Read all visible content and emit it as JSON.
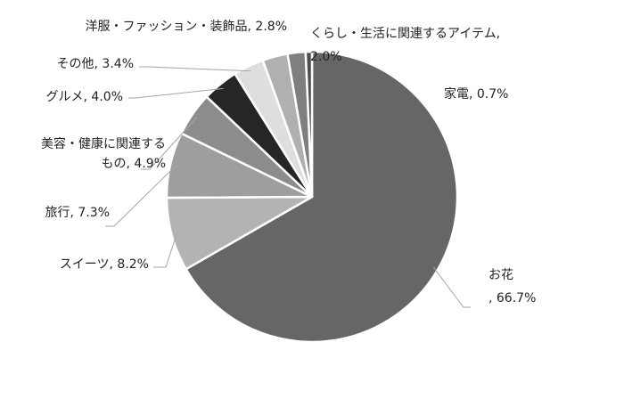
{
  "chart_data": {
    "type": "pie",
    "title": "",
    "slices": [
      {
        "label": "お花",
        "value": 66.7,
        "color": "#666666",
        "label_lines": [
          "お花",
          ", 66.7%"
        ]
      },
      {
        "label": "スイーツ",
        "value": 8.2,
        "color": "#b3b3b3",
        "label_lines": [
          "スイーツ, 8.2%"
        ]
      },
      {
        "label": "旅行",
        "value": 7.3,
        "color": "#9e9e9e",
        "label_lines": [
          "旅行, 7.3%"
        ]
      },
      {
        "label": "美容・健康に関連するもの",
        "value": 4.9,
        "color": "#8c8c8c",
        "label_lines": [
          "美容・健康に関連する",
          "もの, 4.9%"
        ]
      },
      {
        "label": "グルメ",
        "value": 4.0,
        "color": "#262626",
        "label_lines": [
          "グルメ, 4.0%"
        ]
      },
      {
        "label": "その他",
        "value": 3.4,
        "color": "#dedede",
        "label_lines": [
          "その他, 3.4%"
        ]
      },
      {
        "label": "洋服・ファッション・装飾品",
        "value": 2.8,
        "color": "#b0b0b0",
        "label_lines": [
          "洋服・ファッション・装飾品, 2.8%"
        ]
      },
      {
        "label": "くらし・生活に関連するアイテム",
        "value": 2.0,
        "color": "#7f7f7f",
        "label_lines": [
          "くらし・生活に関連するアイテム,",
          "2.0%"
        ]
      },
      {
        "label": "家電",
        "value": 0.7,
        "color": "#4d4d4d",
        "label_lines": [
          "家電, 0.7%"
        ]
      }
    ]
  }
}
